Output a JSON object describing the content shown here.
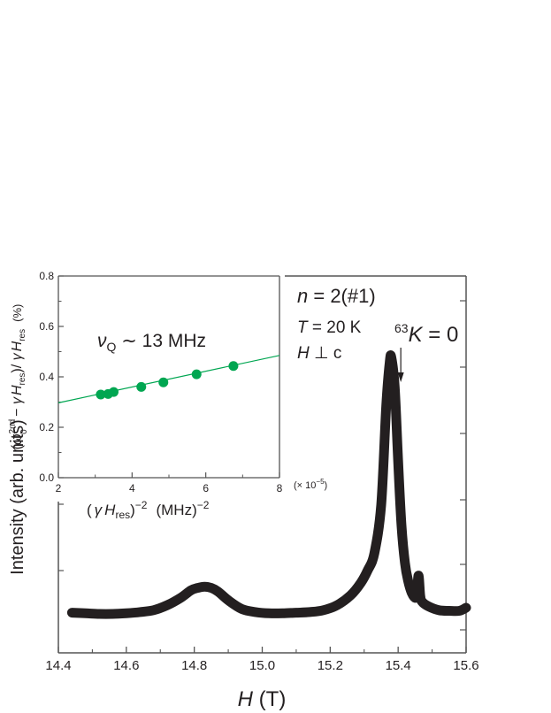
{
  "chart_data": [
    {
      "type": "line",
      "xlabel": {
        "italic": "H",
        "rest": " (T)"
      },
      "ylabel": "Intensity (arb. units)",
      "xlim": [
        14.4,
        15.6
      ],
      "xticks": [
        "14.4",
        "14.6",
        "14.8",
        "15.0",
        "15.2",
        "15.4",
        "15.6"
      ],
      "annotations": {
        "n_label": {
          "italic": "n",
          "rest": " = 2(#1)"
        },
        "t_label": {
          "italic": "T",
          "rest": " = 20 K"
        },
        "h_label": {
          "italic": "H",
          "rest": " ⊥ c"
        },
        "k_label": {
          "sup": "63",
          "italic": "K",
          "rest": " = 0"
        },
        "k_arrow_x": 15.4
      },
      "series": [
        {
          "color": "#231f20",
          "x": [
            14.44,
            14.48,
            14.52,
            14.56,
            14.6,
            14.64,
            14.68,
            14.72,
            14.76,
            14.79,
            14.81,
            14.83,
            14.85,
            14.87,
            14.9,
            14.94,
            14.98,
            15.02,
            15.06,
            15.1,
            15.14,
            15.18,
            15.22,
            15.26,
            15.29,
            15.31,
            15.33,
            15.35,
            15.365,
            15.375,
            15.38,
            15.39,
            15.4,
            15.41,
            15.42,
            15.43,
            15.44,
            15.45,
            15.455,
            15.46,
            15.465,
            15.47,
            15.49,
            15.52,
            15.55,
            15.58,
            15.6
          ],
          "y": [
            0.08,
            0.075,
            0.07,
            0.07,
            0.075,
            0.085,
            0.1,
            0.14,
            0.2,
            0.26,
            0.28,
            0.29,
            0.28,
            0.25,
            0.18,
            0.11,
            0.085,
            0.075,
            0.075,
            0.08,
            0.085,
            0.1,
            0.14,
            0.22,
            0.32,
            0.42,
            0.56,
            0.95,
            1.75,
            2.1,
            2.14,
            1.9,
            1.3,
            0.78,
            0.48,
            0.33,
            0.24,
            0.2,
            0.23,
            0.38,
            0.22,
            0.17,
            0.13,
            0.1,
            0.095,
            0.095,
            0.12
          ]
        }
      ]
    },
    {
      "type": "scatter",
      "xlabel": "(γHres)⁻² (MHz)⁻²",
      "xlabel_parts": {
        "pre": "(",
        "gamma": "γ",
        "h": "H",
        "sub": "res",
        "close": ")",
        "exp": "−2",
        "unit": "(MHz)",
        "unit_exp": "−2"
      },
      "ylabel_parts": {
        "omega": "ω",
        "sup": "2nd",
        "sub0": "0",
        "minus": " − ",
        "gamma": "γ",
        "h": "H",
        "sub": "res",
        "slash": ")/ ",
        "pct": "(%)"
      },
      "xlim": [
        2,
        8
      ],
      "ylim": [
        0,
        0.8
      ],
      "xticks": [
        "2",
        "4",
        "6",
        "8"
      ],
      "yticks": [
        "0.0",
        "0.2",
        "0.4",
        "0.6",
        "0.8"
      ],
      "x_multiplier": "(× 10⁻⁵)",
      "x_multiplier_parts": {
        "pre": "(× 10",
        "exp": "−5",
        "post": ")"
      },
      "annotation": {
        "nu": "ν",
        "sub": "Q",
        "rest": " ∼ 13 MHz"
      },
      "point_color": "#00a651",
      "fit_color": "#00a651",
      "points": {
        "x": [
          3.15,
          3.35,
          3.5,
          4.25,
          4.85,
          5.75,
          6.75
        ],
        "y": [
          0.33,
          0.332,
          0.34,
          0.36,
          0.378,
          0.41,
          0.443
        ]
      },
      "fit": {
        "x": [
          2,
          8
        ],
        "y": [
          0.297,
          0.485
        ]
      }
    }
  ]
}
